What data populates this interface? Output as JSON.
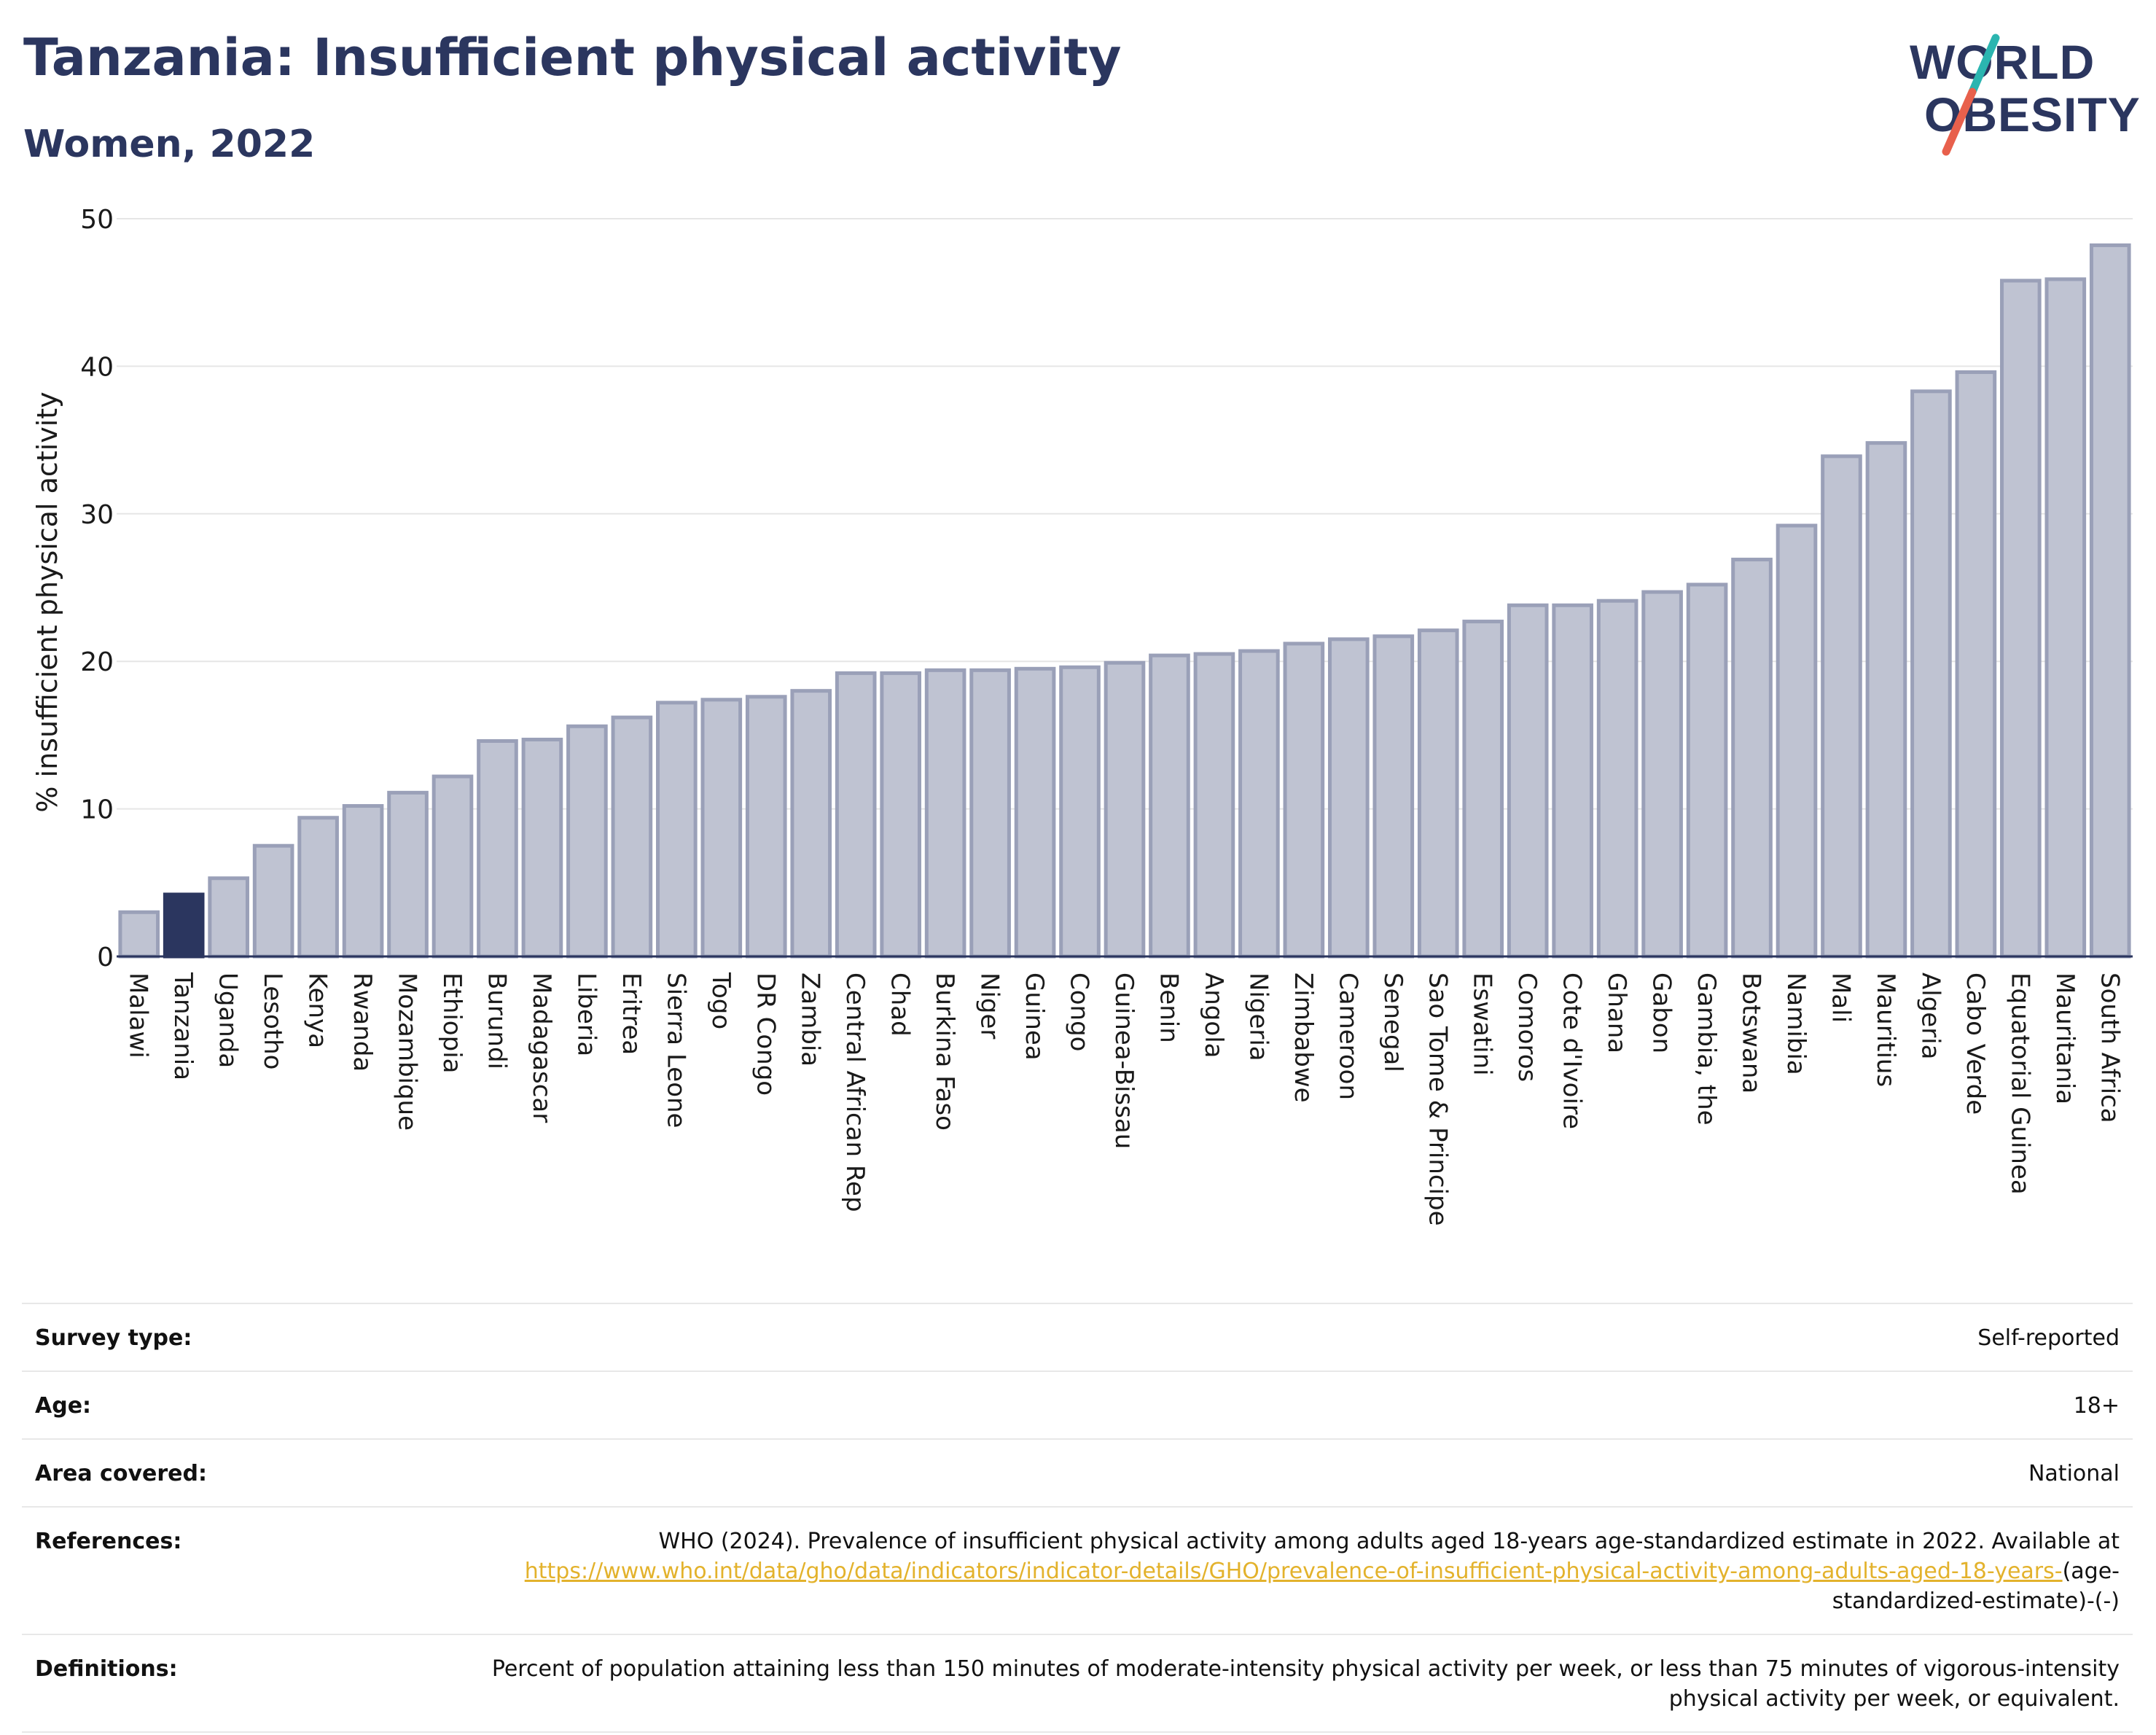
{
  "header": {
    "title": "Tanzania: Insufficient physical activity",
    "subtitle": "Women, 2022"
  },
  "logo": {
    "line1": "WORLD",
    "line2": "OBESITY",
    "colors": {
      "text": "#2b365f",
      "slash_top": "#2bb5b0",
      "slash_bottom": "#e8604c"
    }
  },
  "colors": {
    "bar": "#bfc3d2",
    "bar_stroke": "#9aa0b8",
    "highlight": "#2b365f",
    "title": "#2b365f",
    "link": "#e3b22c",
    "grid": "#e6e6e6"
  },
  "chart_data": {
    "type": "bar",
    "ylabel": "% insufficient physical activity",
    "xlabel": "",
    "ylim": [
      0,
      50
    ],
    "yticks": [
      0,
      10,
      20,
      30,
      40,
      50
    ],
    "grid": true,
    "highlight": "Tanzania",
    "categories": [
      "Malawi",
      "Tanzania",
      "Uganda",
      "Lesotho",
      "Kenya",
      "Rwanda",
      "Mozambique",
      "Ethiopia",
      "Burundi",
      "Madagascar",
      "Liberia",
      "Eritrea",
      "Sierra Leone",
      "Togo",
      "DR Congo",
      "Zambia",
      "Central African Rep",
      "Chad",
      "Burkina Faso",
      "Niger",
      "Guinea",
      "Congo",
      "Guinea-Bissau",
      "Benin",
      "Angola",
      "Nigeria",
      "Zimbabwe",
      "Cameroon",
      "Senegal",
      "Sao Tome & Principe",
      "Eswatini",
      "Comoros",
      "Cote d'Ivoire",
      "Ghana",
      "Gabon",
      "Gambia, the",
      "Botswana",
      "Namibia",
      "Mali",
      "Mauritius",
      "Algeria",
      "Cabo Verde",
      "Equatorial Guinea",
      "Mauritania",
      "South Africa"
    ],
    "values": [
      3.0,
      4.2,
      5.3,
      7.5,
      9.4,
      10.2,
      11.1,
      12.2,
      14.6,
      14.7,
      15.6,
      16.2,
      17.2,
      17.4,
      17.6,
      18.0,
      19.2,
      19.2,
      19.4,
      19.4,
      19.5,
      19.6,
      19.9,
      20.4,
      20.5,
      20.7,
      21.2,
      21.5,
      21.7,
      22.1,
      22.7,
      23.8,
      23.8,
      24.1,
      24.7,
      25.2,
      26.9,
      29.2,
      33.9,
      34.8,
      38.3,
      39.6,
      45.8,
      45.9,
      48.2
    ]
  },
  "info": [
    {
      "key": "Survey type:",
      "value": "Self-reported"
    },
    {
      "key": "Age:",
      "value": "18+"
    },
    {
      "key": "Area covered:",
      "value": "National"
    },
    {
      "key": "References:",
      "value": "WHO (2024). Prevalence of insufficient physical activity among adults aged 18-years age-standardized estimate in 2022. Available at",
      "link": "https://www.who.int/data/gho/data/indicators/indicator-details/GHO/prevalence-of-insufficient-physical-activity-among-adults-aged-18-years-",
      "after_link": "(age-standardized-estimate)-(-)"
    },
    {
      "key": "Definitions:",
      "value": "Percent of population attaining less than 150 minutes of moderate-intensity physical activity per week, or less than 75 minutes of vigorous-intensity physical activity per week, or equivalent."
    }
  ]
}
